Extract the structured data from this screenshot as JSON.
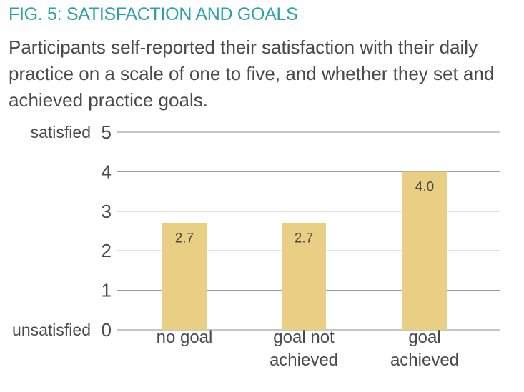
{
  "header": {
    "title": "FIG. 5: SATISFACTION AND GOALS",
    "subtitle": "Participants self-reported their satisfaction with their daily practice on a scale of one to five, and whether they set and achieved practice goals."
  },
  "colors": {
    "bar": "#e8cf84",
    "grid": "#8c8c8c",
    "text": "#4a4a4a",
    "title": "#2aa3a8"
  },
  "chart_data": {
    "type": "bar",
    "title": "FIG. 5: SATISFACTION AND GOALS",
    "categories": [
      [
        "no goal"
      ],
      [
        "goal not",
        "achieved"
      ],
      [
        "goal",
        "achieved"
      ]
    ],
    "values": [
      2.7,
      2.7,
      4.0
    ],
    "value_labels": [
      "2.7",
      "2.7",
      "4.0"
    ],
    "ylim": [
      0,
      5
    ],
    "yticks": [
      0,
      1,
      2,
      3,
      4,
      5
    ],
    "ytick_labels": [
      "0",
      "1",
      "2",
      "3",
      "4",
      "5"
    ],
    "ylabel_high": "satisfied",
    "ylabel_low": "unsatisfied",
    "grid": true,
    "legend": "none"
  }
}
